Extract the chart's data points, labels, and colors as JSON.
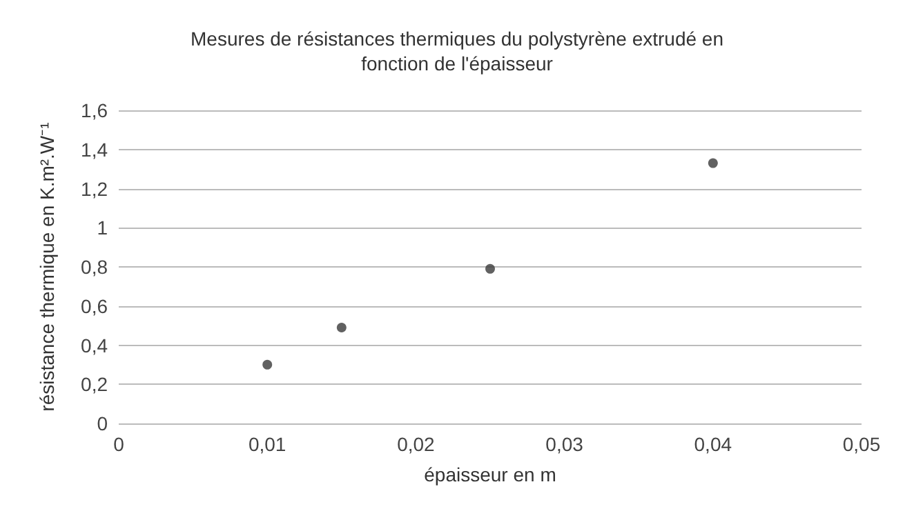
{
  "chart_data": {
    "type": "scatter",
    "title": "Mesures de résistances thermiques du polystyrène extrudé en\nfonction de l'épaisseur",
    "xlabel": "épaisseur en m",
    "ylabel": "résistance thermique en K.m².W⁻¹",
    "x": [
      0.01,
      0.015,
      0.025,
      0.04
    ],
    "series": [
      {
        "color": "#3a3a3a",
        "values": [
          0.3,
          0.49,
          0.79,
          1.33
        ]
      }
    ],
    "xlim": [
      0,
      0.05
    ],
    "xticks": [
      {
        "value": 0,
        "label": "0"
      },
      {
        "value": 0.01,
        "label": "0,01"
      },
      {
        "value": 0.02,
        "label": "0,02"
      },
      {
        "value": 0.03,
        "label": "0,03"
      },
      {
        "value": 0.04,
        "label": "0,04"
      },
      {
        "value": 0.05,
        "label": "0,05"
      }
    ],
    "ylim": [
      0,
      1.6
    ],
    "yticks": [
      {
        "value": 0,
        "label": "0"
      },
      {
        "value": 0.2,
        "label": "0,2"
      },
      {
        "value": 0.4,
        "label": "0,4"
      },
      {
        "value": 0.6,
        "label": "0,6"
      },
      {
        "value": 0.8,
        "label": "0,8"
      },
      {
        "value": 1,
        "label": "1"
      },
      {
        "value": 1.2,
        "label": "1,2"
      },
      {
        "value": 1.4,
        "label": "1,4"
      },
      {
        "value": 1.6,
        "label": "1,6"
      }
    ],
    "grid": "y",
    "marker": "circle"
  }
}
